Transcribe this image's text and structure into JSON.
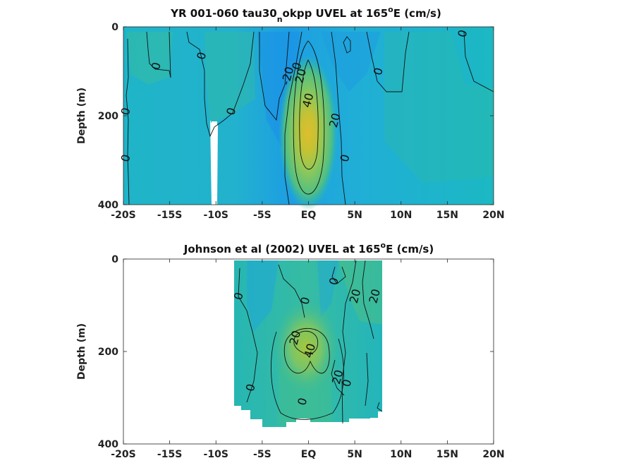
{
  "chart_data": [
    {
      "type": "heatmap",
      "title": "YR 001-060 tau30",
      "title_subscript": "n",
      "title_rest": "okpp UVEL at 165",
      "title_superscript": "o",
      "title_end": "E (cm/s)",
      "ylabel": "Depth (m)",
      "xlim": [
        -20,
        20
      ],
      "ylim": [
        0,
        400
      ],
      "y_reversed": true,
      "x_ticks": [
        -20,
        -15,
        -10,
        -5,
        0,
        5,
        10,
        15,
        20
      ],
      "x_tick_labels": [
        "-20S",
        "-15S",
        "-10S",
        "-5S",
        "EQ",
        "5N",
        "10N",
        "15N",
        "20N"
      ],
      "y_ticks": [
        0,
        200,
        400
      ],
      "y_tick_labels": [
        "0",
        "200",
        "400"
      ],
      "colormap": "parula",
      "color_range": [
        -40,
        60
      ],
      "data_extent": {
        "lat": [
          -20,
          20
        ],
        "depth": [
          0,
          385
        ]
      },
      "core": {
        "lat": 0.3,
        "depth": 205,
        "peak": 50
      },
      "contour_labels": [
        {
          "text": "0",
          "lat": -19.8,
          "depth": 190
        },
        {
          "text": "0",
          "lat": -19.8,
          "depth": 295
        },
        {
          "text": "0",
          "lat": -11.6,
          "depth": 65
        },
        {
          "text": "0",
          "lat": -16.5,
          "depth": 88
        },
        {
          "text": "0",
          "lat": -8.4,
          "depth": 190
        },
        {
          "text": "-20",
          "lat": -2.3,
          "depth": 110
        },
        {
          "text": "20",
          "lat": -0.9,
          "depth": 110
        },
        {
          "text": "0",
          "lat": -1.3,
          "depth": 88
        },
        {
          "text": "40",
          "lat": -0.1,
          "depth": 165
        },
        {
          "text": "20",
          "lat": 2.8,
          "depth": 210
        },
        {
          "text": "0",
          "lat": 3.9,
          "depth": 295
        },
        {
          "text": "0",
          "lat": 7.5,
          "depth": 100
        },
        {
          "text": "0",
          "lat": 16.6,
          "depth": 15
        }
      ]
    },
    {
      "type": "heatmap",
      "title": "Johnson et al (2002) UVEL at 165",
      "title_superscript": "o",
      "title_end": "E (cm/s)",
      "ylabel": "Depth (m)",
      "xlim": [
        -20,
        20
      ],
      "ylim": [
        0,
        400
      ],
      "y_reversed": true,
      "x_ticks": [
        -20,
        -15,
        -10,
        -5,
        0,
        5,
        10,
        15,
        20
      ],
      "x_tick_labels": [
        "-20S",
        "-15S",
        "-10S",
        "-5S",
        "EQ",
        "5N",
        "10N",
        "15N",
        "20N"
      ],
      "y_ticks": [
        0,
        200,
        400
      ],
      "y_tick_labels": [
        "0",
        "200",
        "400"
      ],
      "colormap": "parula",
      "color_range": [
        -40,
        60
      ],
      "data_extent": {
        "lat": [
          -8,
          8
        ],
        "depth": [
          0,
          365
        ]
      },
      "core": {
        "lat": 0.2,
        "depth": 190,
        "peak": 40
      },
      "contour_labels": [
        {
          "text": "0",
          "lat": -7.6,
          "depth": 80
        },
        {
          "text": "0",
          "lat": -0.4,
          "depth": 90
        },
        {
          "text": "0",
          "lat": 2.7,
          "depth": 48
        },
        {
          "text": "20",
          "lat": 5.0,
          "depth": 80
        },
        {
          "text": "20",
          "lat": 7.1,
          "depth": 80
        },
        {
          "text": "20",
          "lat": -1.5,
          "depth": 170
        },
        {
          "text": "40",
          "lat": 0.1,
          "depth": 198
        },
        {
          "text": "20",
          "lat": 3.1,
          "depth": 255
        },
        {
          "text": "0",
          "lat": 4.1,
          "depth": 268
        },
        {
          "text": "0",
          "lat": -6.3,
          "depth": 278
        },
        {
          "text": "0",
          "lat": -0.7,
          "depth": 308
        }
      ]
    }
  ]
}
